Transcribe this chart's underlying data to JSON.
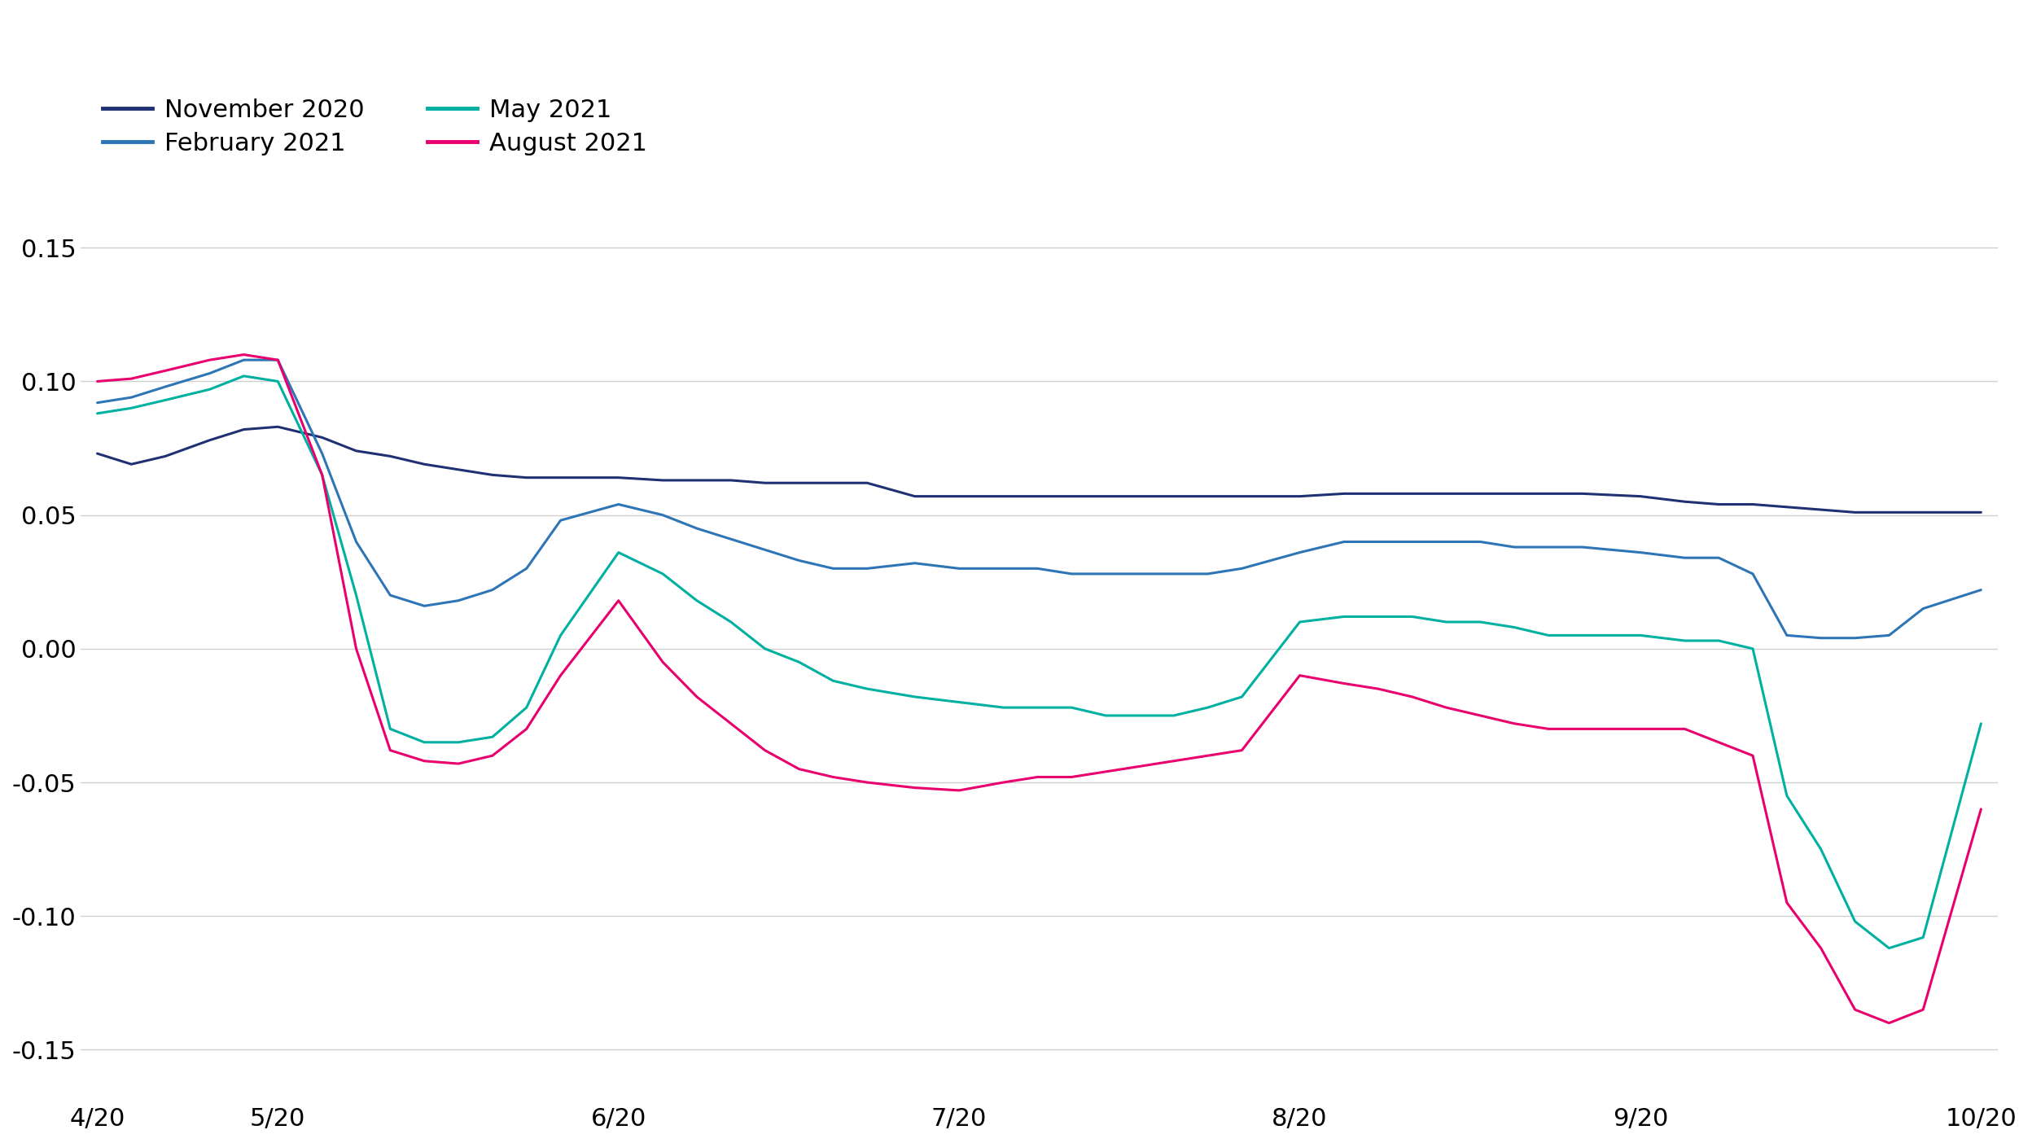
{
  "legend": [
    {
      "label": "November 2020",
      "color": "#1f3172"
    },
    {
      "label": "February 2021",
      "color": "#2e75b6"
    },
    {
      "label": "May 2021",
      "color": "#00b0a0"
    },
    {
      "label": "August 2021",
      "color": "#e8006e"
    }
  ],
  "series": {
    "November 2020": {
      "x": [
        4.67,
        4.77,
        4.87,
        5.0,
        5.1,
        5.2,
        5.33,
        5.43,
        5.53,
        5.63,
        5.73,
        5.83,
        5.93,
        6.03,
        6.2,
        6.33,
        6.43,
        6.53,
        6.63,
        6.73,
        6.83,
        6.93,
        7.07,
        7.2,
        7.33,
        7.43,
        7.53,
        7.63,
        7.73,
        7.83,
        7.93,
        8.03,
        8.2,
        8.33,
        8.43,
        8.53,
        8.63,
        8.73,
        8.83,
        8.93,
        9.03,
        9.2,
        9.33,
        9.43,
        9.53,
        9.63,
        9.73,
        9.83,
        9.93,
        10.03,
        10.2
      ],
      "y": [
        0.073,
        0.069,
        0.072,
        0.078,
        0.082,
        0.083,
        0.079,
        0.074,
        0.072,
        0.069,
        0.067,
        0.065,
        0.064,
        0.064,
        0.064,
        0.063,
        0.063,
        0.063,
        0.062,
        0.062,
        0.062,
        0.062,
        0.057,
        0.057,
        0.057,
        0.057,
        0.057,
        0.057,
        0.057,
        0.057,
        0.057,
        0.057,
        0.057,
        0.058,
        0.058,
        0.058,
        0.058,
        0.058,
        0.058,
        0.058,
        0.058,
        0.057,
        0.055,
        0.054,
        0.054,
        0.053,
        0.052,
        0.051,
        0.051,
        0.051,
        0.051
      ]
    },
    "February 2021": {
      "x": [
        4.67,
        4.77,
        4.87,
        5.0,
        5.1,
        5.2,
        5.33,
        5.43,
        5.53,
        5.63,
        5.73,
        5.83,
        5.93,
        6.03,
        6.2,
        6.33,
        6.43,
        6.53,
        6.63,
        6.73,
        6.83,
        6.93,
        7.07,
        7.2,
        7.33,
        7.43,
        7.53,
        7.63,
        7.73,
        7.83,
        7.93,
        8.03,
        8.2,
        8.33,
        8.43,
        8.53,
        8.63,
        8.73,
        8.83,
        8.93,
        9.03,
        9.2,
        9.33,
        9.43,
        9.53,
        9.63,
        9.73,
        9.83,
        9.93,
        10.03,
        10.2
      ],
      "y": [
        0.092,
        0.094,
        0.098,
        0.103,
        0.108,
        0.108,
        0.073,
        0.04,
        0.02,
        0.016,
        0.018,
        0.022,
        0.03,
        0.048,
        0.054,
        0.05,
        0.045,
        0.041,
        0.037,
        0.033,
        0.03,
        0.03,
        0.032,
        0.03,
        0.03,
        0.03,
        0.028,
        0.028,
        0.028,
        0.028,
        0.028,
        0.03,
        0.036,
        0.04,
        0.04,
        0.04,
        0.04,
        0.04,
        0.038,
        0.038,
        0.038,
        0.036,
        0.034,
        0.034,
        0.028,
        0.005,
        0.004,
        0.004,
        0.005,
        0.015,
        0.022
      ]
    },
    "May 2021": {
      "x": [
        4.67,
        4.77,
        4.87,
        5.0,
        5.1,
        5.2,
        5.33,
        5.43,
        5.53,
        5.63,
        5.73,
        5.83,
        5.93,
        6.03,
        6.2,
        6.33,
        6.43,
        6.53,
        6.63,
        6.73,
        6.83,
        6.93,
        7.07,
        7.2,
        7.33,
        7.43,
        7.53,
        7.63,
        7.73,
        7.83,
        7.93,
        8.03,
        8.2,
        8.33,
        8.43,
        8.53,
        8.63,
        8.73,
        8.83,
        8.93,
        9.03,
        9.2,
        9.33,
        9.43,
        9.53,
        9.63,
        9.73,
        9.83,
        9.93,
        10.03,
        10.2
      ],
      "y": [
        0.088,
        0.09,
        0.093,
        0.097,
        0.102,
        0.1,
        0.065,
        0.02,
        -0.03,
        -0.035,
        -0.035,
        -0.033,
        -0.022,
        0.005,
        0.036,
        0.028,
        0.018,
        0.01,
        0.0,
        -0.005,
        -0.012,
        -0.015,
        -0.018,
        -0.02,
        -0.022,
        -0.022,
        -0.022,
        -0.025,
        -0.025,
        -0.025,
        -0.022,
        -0.018,
        0.01,
        0.012,
        0.012,
        0.012,
        0.01,
        0.01,
        0.008,
        0.005,
        0.005,
        0.005,
        0.003,
        0.003,
        0.0,
        -0.055,
        -0.075,
        -0.102,
        -0.112,
        -0.108,
        -0.028
      ]
    },
    "August 2021": {
      "x": [
        4.67,
        4.77,
        4.87,
        5.0,
        5.1,
        5.2,
        5.33,
        5.43,
        5.53,
        5.63,
        5.73,
        5.83,
        5.93,
        6.03,
        6.2,
        6.33,
        6.43,
        6.53,
        6.63,
        6.73,
        6.83,
        6.93,
        7.07,
        7.2,
        7.33,
        7.43,
        7.53,
        7.63,
        7.73,
        7.83,
        7.93,
        8.03,
        8.2,
        8.33,
        8.43,
        8.53,
        8.63,
        8.73,
        8.83,
        8.93,
        9.03,
        9.2,
        9.33,
        9.43,
        9.53,
        9.63,
        9.73,
        9.83,
        9.93,
        10.03,
        10.2
      ],
      "y": [
        0.1,
        0.101,
        0.104,
        0.108,
        0.11,
        0.108,
        0.065,
        0.0,
        -0.038,
        -0.042,
        -0.043,
        -0.04,
        -0.03,
        -0.01,
        0.018,
        -0.005,
        -0.018,
        -0.028,
        -0.038,
        -0.045,
        -0.048,
        -0.05,
        -0.052,
        -0.053,
        -0.05,
        -0.048,
        -0.048,
        -0.046,
        -0.044,
        -0.042,
        -0.04,
        -0.038,
        -0.01,
        -0.013,
        -0.015,
        -0.018,
        -0.022,
        -0.025,
        -0.028,
        -0.03,
        -0.03,
        -0.03,
        -0.03,
        -0.035,
        -0.04,
        -0.095,
        -0.112,
        -0.135,
        -0.14,
        -0.135,
        -0.06
      ]
    }
  },
  "xticks": [
    4.67,
    5.2,
    6.2,
    7.2,
    8.2,
    9.2,
    10.2
  ],
  "xticklabels": [
    "4/20",
    "5/20",
    "6/20",
    "7/20",
    "8/20",
    "9/20",
    "10/20"
  ],
  "ylim": [
    -0.17,
    0.17
  ],
  "yticks": [
    -0.15,
    -0.1,
    -0.05,
    0.0,
    0.05,
    0.1,
    0.15
  ],
  "yticklabels": [
    "-0.15",
    "-0.10",
    "-0.05",
    "0.00",
    "0.05",
    "0.10",
    "0.15"
  ],
  "background_color": "#ffffff",
  "grid_color": "#d0d0d0",
  "line_width": 2.2,
  "tick_fontsize": 22,
  "legend_fontsize": 22
}
